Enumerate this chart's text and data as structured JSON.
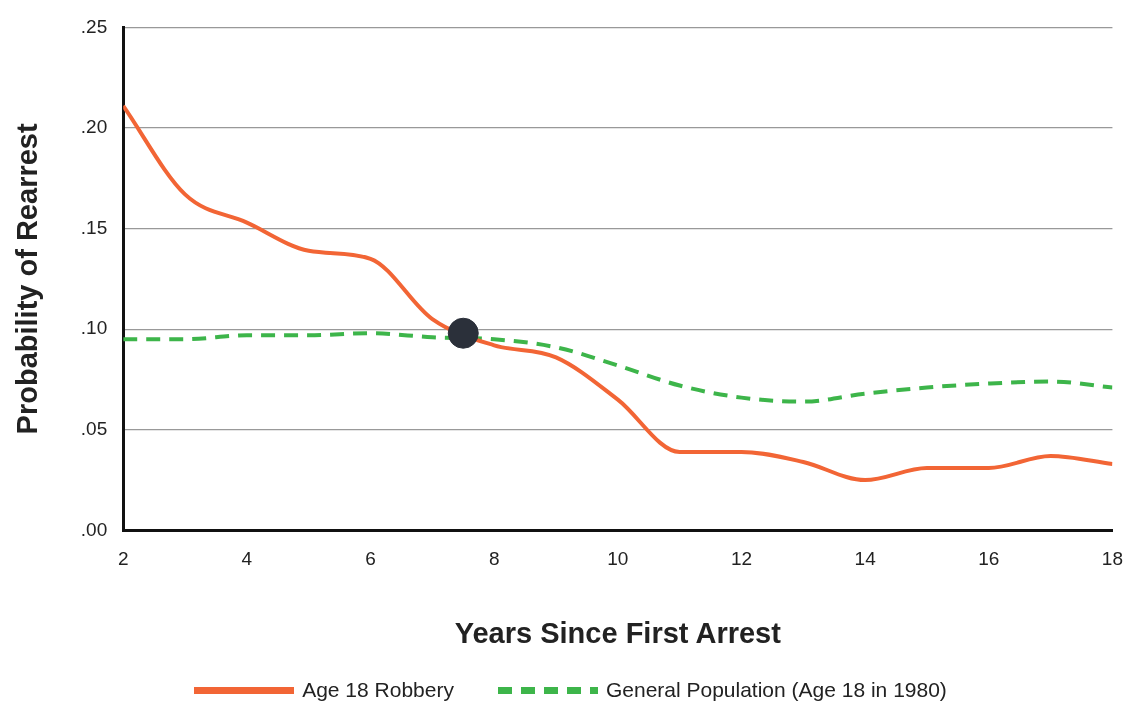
{
  "chart_data": {
    "type": "line",
    "xlabel": "Years Since First Arrest",
    "ylabel": "Probability of Rearrest",
    "xlim": [
      2,
      18
    ],
    "xticks": [
      2,
      4,
      6,
      8,
      10,
      12,
      14,
      16,
      18
    ],
    "ylim": [
      0,
      0.25
    ],
    "yticks": [
      {
        "value": 0,
        "label": ".00"
      },
      {
        "value": 0.05,
        "label": ".05"
      },
      {
        "value": 0.1,
        "label": ".10"
      },
      {
        "value": 0.15,
        "label": ".15"
      },
      {
        "value": 0.2,
        "label": ".20"
      },
      {
        "value": 0.25,
        "label": ".25"
      }
    ],
    "x": [
      2,
      3,
      4,
      5,
      6,
      7,
      8,
      9,
      10,
      11,
      12,
      13,
      14,
      15,
      16,
      17,
      18
    ],
    "series": [
      {
        "name": "Age 18 Robbery",
        "color": "#f26535",
        "line_style": "solid",
        "values": [
          0.211,
          0.167,
          0.153,
          0.139,
          0.135,
          0.105,
          0.092,
          0.086,
          0.065,
          0.039,
          0.039,
          0.034,
          0.025,
          0.031,
          0.031,
          0.037,
          0.033
        ]
      },
      {
        "name": "General Population (Age 18 in 1980)",
        "color": "#3db54a",
        "line_style": "dashed",
        "values": [
          0.095,
          0.095,
          0.097,
          0.097,
          0.098,
          0.096,
          0.095,
          0.091,
          0.082,
          0.072,
          0.066,
          0.064,
          0.068,
          0.071,
          0.073,
          0.074,
          0.071
        ]
      },
      {
        "type": "scatter",
        "color": "#2b303a",
        "marker": "circle",
        "x": [
          7.5
        ],
        "values": [
          0.098
        ]
      }
    ],
    "grid": "y",
    "legend": "bottom",
    "marker": "none"
  }
}
